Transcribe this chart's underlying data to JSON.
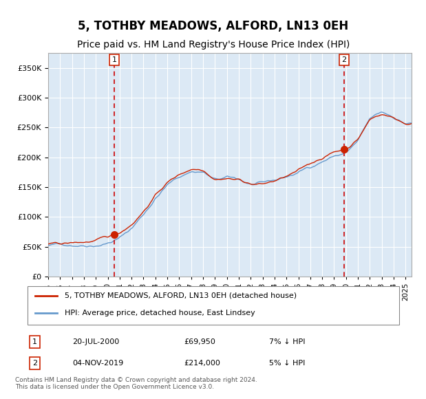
{
  "title": "5, TOTHBY MEADOWS, ALFORD, LN13 0EH",
  "subtitle": "Price paid vs. HM Land Registry's House Price Index (HPI)",
  "legend_line1": "5, TOTHBY MEADOWS, ALFORD, LN13 0EH (detached house)",
  "legend_line2": "HPI: Average price, detached house, East Lindsey",
  "sale1_date": "20-JUL-2000",
  "sale1_price": 69950,
  "sale1_label": "7% ↓ HPI",
  "sale2_date": "04-NOV-2019",
  "sale2_price": 214000,
  "sale2_label": "5% ↓ HPI",
  "footnote": "Contains HM Land Registry data © Crown copyright and database right 2024.\nThis data is licensed under the Open Government Licence v3.0.",
  "ylim": [
    0,
    375000
  ],
  "yticks": [
    0,
    50000,
    100000,
    150000,
    200000,
    250000,
    300000,
    350000
  ],
  "xlim_start": 1995.0,
  "xlim_end": 2025.5,
  "xticks": [
    1995,
    1996,
    1997,
    1998,
    1999,
    2000,
    2001,
    2002,
    2003,
    2004,
    2005,
    2006,
    2007,
    2008,
    2009,
    2010,
    2011,
    2012,
    2013,
    2014,
    2015,
    2016,
    2017,
    2018,
    2019,
    2020,
    2021,
    2022,
    2023,
    2024,
    2025
  ],
  "bg_color": "#dce9f5",
  "plot_bg": "#dce9f5",
  "hpi_color": "#6699cc",
  "price_color": "#cc2200",
  "vline_color": "#cc0000",
  "marker_color": "#cc2200",
  "grid_color": "#ffffff",
  "sale1_year": 2000.55,
  "sale2_year": 2019.84,
  "title_fontsize": 12,
  "subtitle_fontsize": 10
}
